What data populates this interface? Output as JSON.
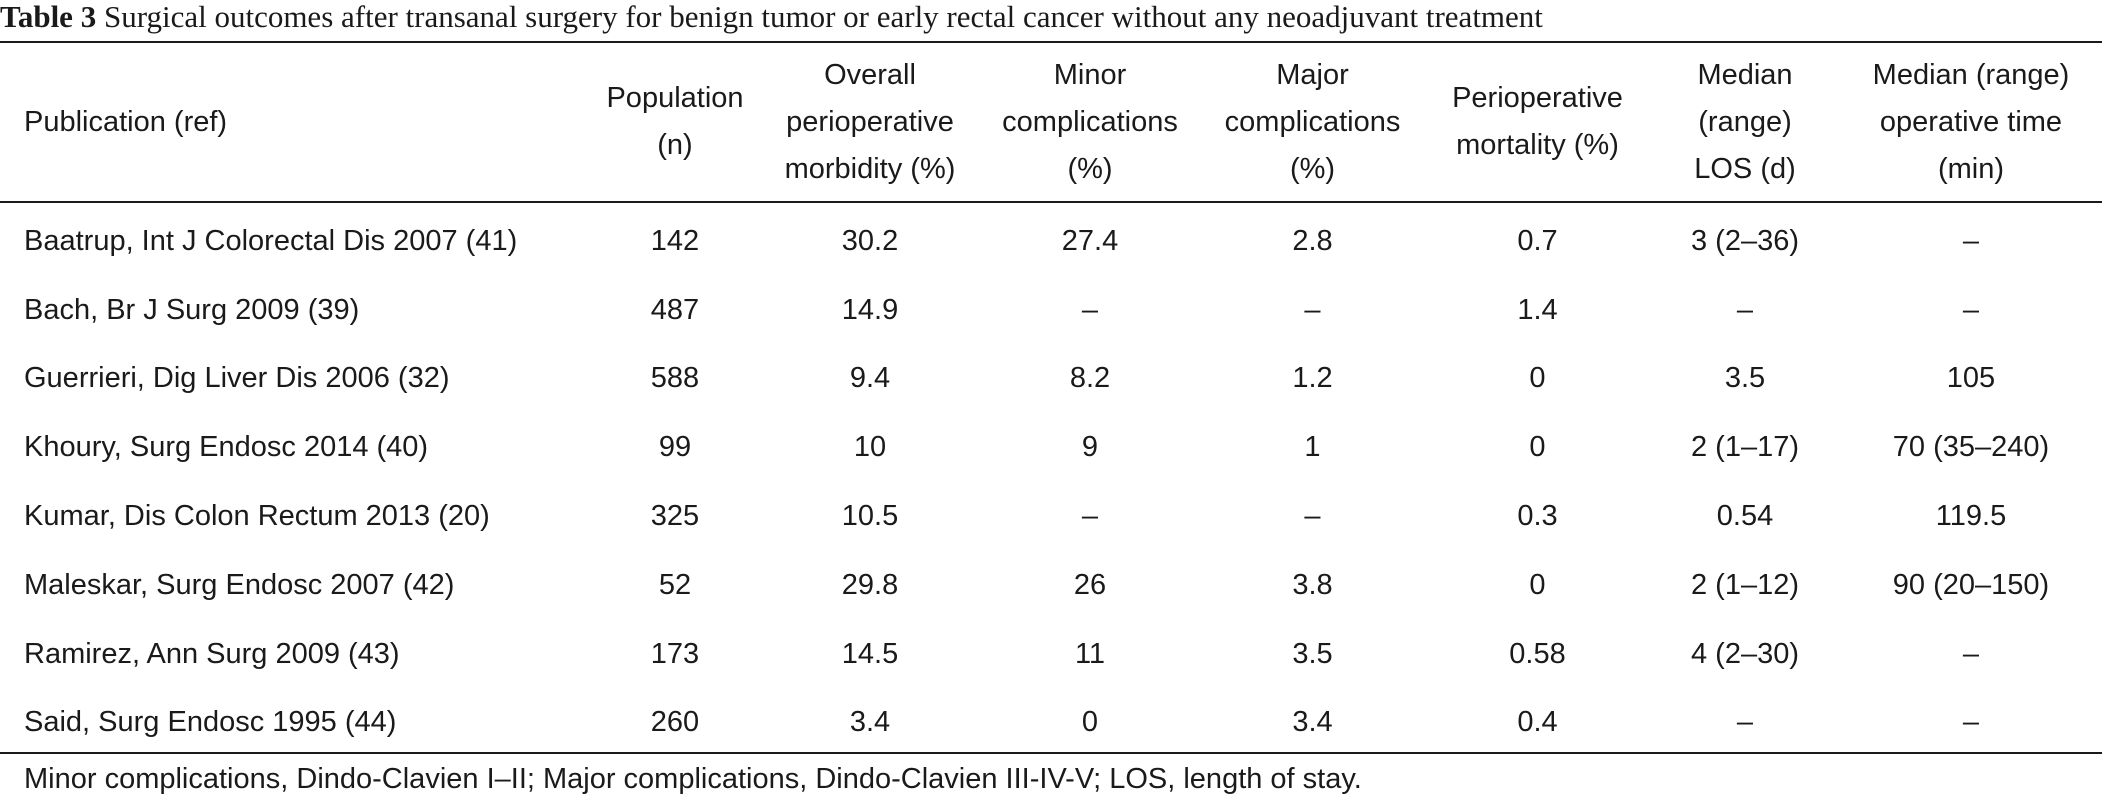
{
  "caption": {
    "label": "Table 3",
    "text": "Surgical outcomes after transanal surgery for benign tumor or early rectal cancer without any neoadjuvant treatment"
  },
  "columns": [
    [
      "Publication (ref)"
    ],
    [
      "Population",
      "(n)"
    ],
    [
      "Overall",
      "perioperative",
      "morbidity (%)"
    ],
    [
      "Minor",
      "complications",
      "(%)"
    ],
    [
      "Major",
      "complications",
      "(%)"
    ],
    [
      "Perioperative",
      "mortality (%)"
    ],
    [
      "Median",
      "(range)",
      "LOS (d)"
    ],
    [
      "Median (range)",
      "operative time",
      "(min)"
    ]
  ],
  "rows": [
    [
      "Baatrup, Int J Colorectal Dis 2007 (41)",
      "142",
      "30.2",
      "27.4",
      "2.8",
      "0.7",
      "3 (2–36)",
      "–"
    ],
    [
      "Bach, Br J Surg 2009 (39)",
      "487",
      "14.9",
      "–",
      "–",
      "1.4",
      "–",
      "–"
    ],
    [
      "Guerrieri, Dig Liver Dis 2006 (32)",
      "588",
      "9.4",
      "8.2",
      "1.2",
      "0",
      "3.5",
      "105"
    ],
    [
      "Khoury, Surg Endosc 2014 (40)",
      "99",
      "10",
      "9",
      "1",
      "0",
      "2 (1–17)",
      "70 (35–240)"
    ],
    [
      "Kumar, Dis Colon Rectum 2013 (20)",
      "325",
      "10.5",
      "–",
      "–",
      "0.3",
      "0.54",
      "119.5"
    ],
    [
      "Maleskar, Surg Endosc 2007 (42)",
      "52",
      "29.8",
      "26",
      "3.8",
      "0",
      "2 (1–12)",
      "90 (20–150)"
    ],
    [
      "Ramirez, Ann Surg 2009 (43)",
      "173",
      "14.5",
      "11",
      "3.5",
      "0.58",
      "4 (2–30)",
      "–"
    ],
    [
      "Said, Surg Endosc 1995 (44)",
      "260",
      "3.4",
      "0",
      "3.4",
      "0.4",
      "–",
      "–"
    ]
  ],
  "footnote": "Minor complications, Dindo-Clavien I–II; Major complications, Dindo-Clavien III-IV-V; LOS, length of stay."
}
